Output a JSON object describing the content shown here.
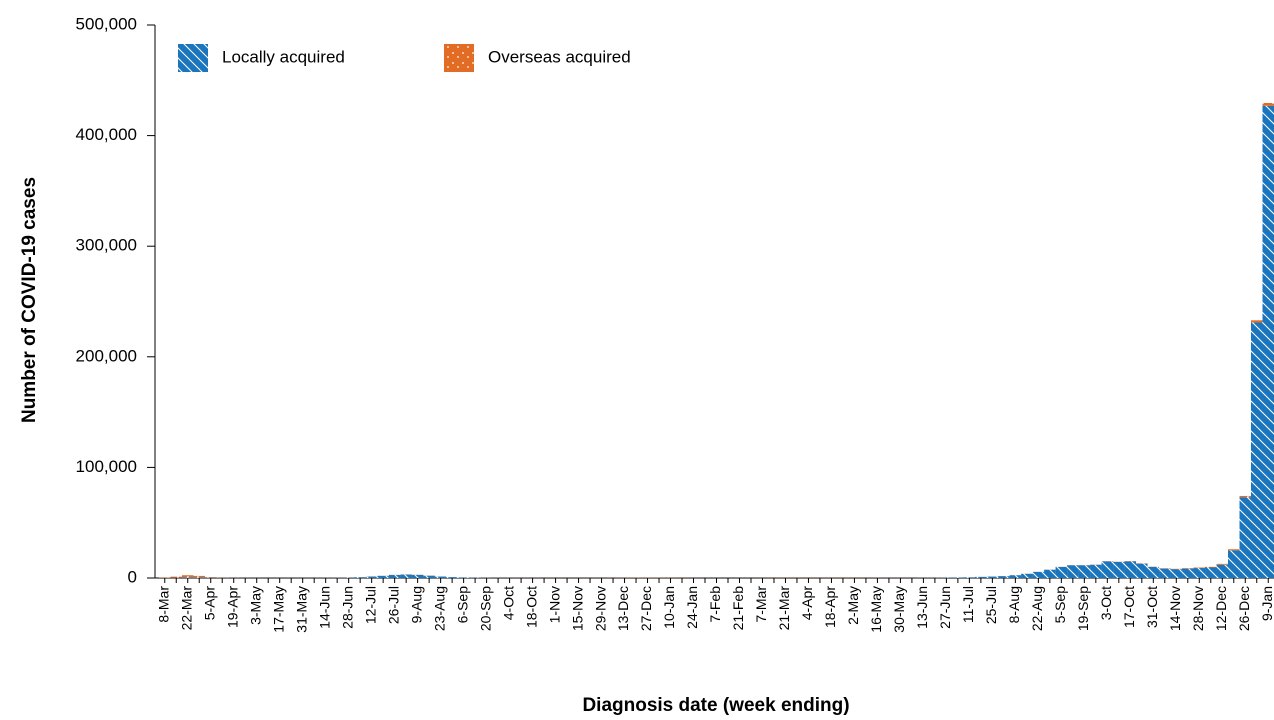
{
  "chart_data": {
    "type": "stacked_bar",
    "y_axis_label": "Number of COVID-19 cases",
    "x_axis_label": "Diagnosis date (week ending)",
    "categories": [
      "8-Mar",
      null,
      "22-Mar",
      null,
      "5-Apr",
      null,
      "19-Apr",
      null,
      "3-May",
      null,
      "17-May",
      null,
      "31-May",
      null,
      "14-Jun",
      null,
      "28-Jun",
      null,
      "12-Jul",
      null,
      "26-Jul",
      null,
      "9-Aug",
      null,
      "23-Aug",
      null,
      "6-Sep",
      null,
      "20-Sep",
      null,
      "4-Oct",
      null,
      "18-Oct",
      null,
      "1-Nov",
      null,
      "15-Nov",
      null,
      "29-Nov",
      null,
      "13-Dec",
      null,
      "27-Dec",
      null,
      "10-Jan",
      null,
      "24-Jan",
      null,
      "7-Feb",
      null,
      "21-Feb",
      null,
      "7-Mar",
      null,
      "21-Mar",
      null,
      "4-Apr",
      null,
      "18-Apr",
      null,
      "2-May",
      null,
      "16-May",
      null,
      "30-May",
      null,
      "13-Jun",
      null,
      "27-Jun",
      null,
      "11-Jul",
      null,
      "25-Jul",
      null,
      "8-Aug",
      null,
      "22-Aug",
      null,
      "5-Sep",
      null,
      "19-Sep",
      null,
      "3-Oct",
      null,
      "17-Oct",
      null,
      "31-Oct",
      null,
      "14-Nov",
      null,
      "28-Nov",
      null,
      "12-Dec",
      null,
      "26-Dec",
      null,
      "9-Jan"
    ],
    "series": [
      {
        "name": "Locally acquired",
        "color": "#1a75bc",
        "pattern": "hatch",
        "values": [
          100,
          300,
          700,
          600,
          300,
          150,
          80,
          50,
          40,
          30,
          30,
          40,
          50,
          60,
          80,
          150,
          400,
          700,
          1300,
          1900,
          2700,
          3100,
          2800,
          2100,
          1300,
          800,
          500,
          300,
          150,
          80,
          60,
          40,
          30,
          20,
          20,
          20,
          20,
          20,
          20,
          40,
          60,
          80,
          60,
          40,
          20,
          20,
          15,
          15,
          20,
          15,
          10,
          10,
          10,
          10,
          10,
          10,
          10,
          10,
          10,
          10,
          10,
          20,
          50,
          40,
          30,
          40,
          80,
          150,
          300,
          450,
          600,
          1000,
          1300,
          1700,
          2500,
          3800,
          5500,
          7500,
          10000,
          11500,
          11500,
          12000,
          15000,
          14500,
          15000,
          13000,
          10000,
          8500,
          8000,
          8500,
          9000,
          9500,
          12000,
          25000,
          73000,
          231000,
          427000
        ]
      },
      {
        "name": "Overseas acquired",
        "color": "#e36c25",
        "pattern": "dots",
        "values": [
          300,
          900,
          1800,
          1300,
          400,
          150,
          100,
          80,
          60,
          50,
          50,
          50,
          60,
          70,
          80,
          100,
          150,
          150,
          150,
          150,
          150,
          150,
          150,
          100,
          100,
          80,
          80,
          80,
          80,
          80,
          80,
          80,
          80,
          80,
          80,
          80,
          80,
          80,
          80,
          100,
          150,
          200,
          200,
          200,
          150,
          100,
          80,
          60,
          60,
          50,
          50,
          60,
          80,
          100,
          120,
          120,
          100,
          100,
          100,
          100,
          100,
          100,
          100,
          80,
          80,
          80,
          80,
          80,
          80,
          80,
          80,
          80,
          80,
          80,
          80,
          80,
          80,
          100,
          100,
          120,
          150,
          150,
          200,
          200,
          250,
          250,
          250,
          300,
          300,
          400,
          500,
          600,
          800,
          1000,
          1200,
          2000,
          2500
        ]
      }
    ],
    "ylim": [
      0,
      500000
    ],
    "yticks": [
      0,
      {
        "value": 100000,
        "label": "100,000"
      },
      {
        "value": 200000,
        "label": "200,000"
      },
      {
        "value": 300000,
        "label": "300,000"
      },
      {
        "value": 400000,
        "label": "400,000"
      },
      {
        "value": 500000,
        "label": "500,000"
      }
    ],
    "legend": "top-left"
  }
}
